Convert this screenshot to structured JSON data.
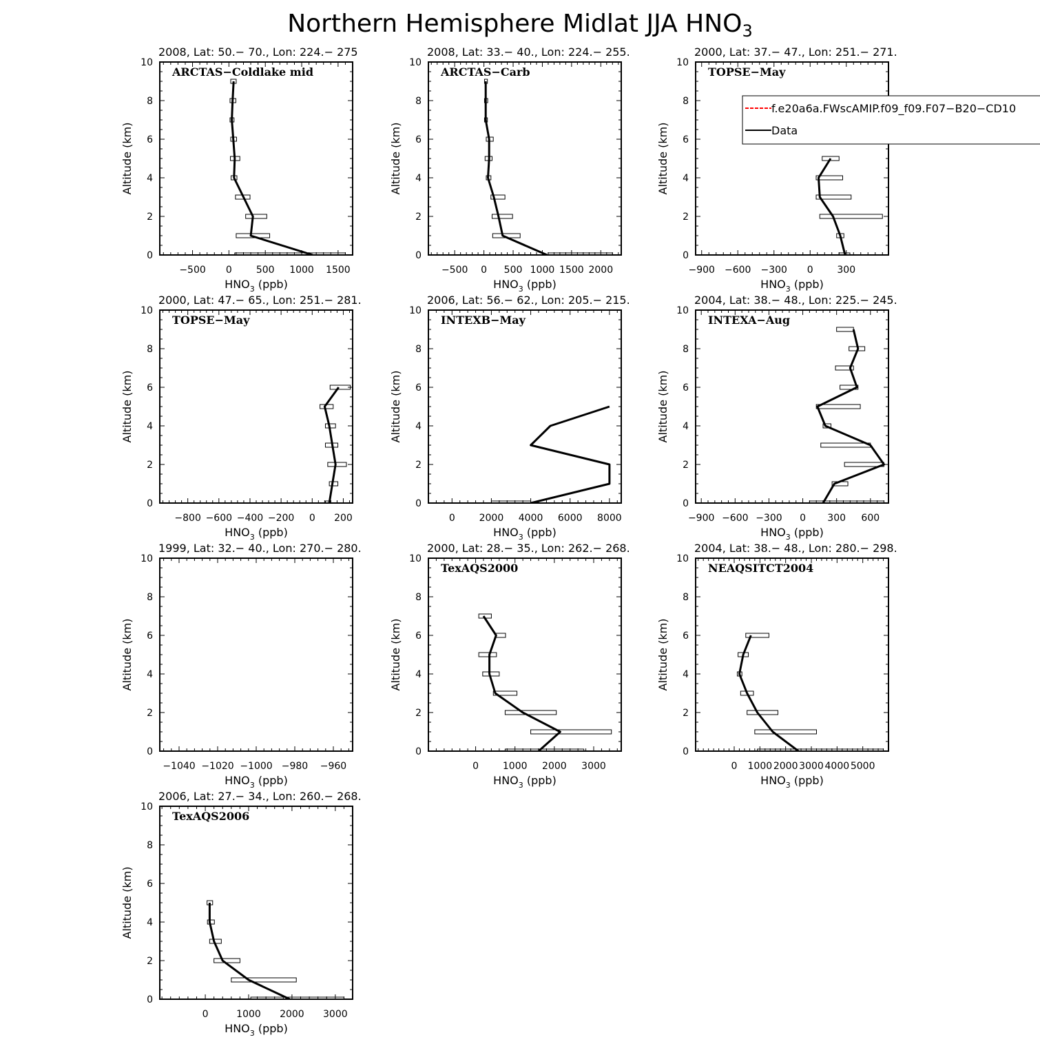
{
  "figure": {
    "title": "Northern Hemisphere Midlat JJA HNO",
    "title_sub": "3"
  },
  "legend": {
    "entries": [
      {
        "label": "f.e20a6a.FWscAMIP.f09_f09.F07−B20−CD10",
        "color": "#ff0000",
        "style": "dashed"
      },
      {
        "label": "Data",
        "color": "#000000",
        "style": "solid"
      }
    ],
    "panel": 2
  },
  "chart_data": [
    {
      "type": "line",
      "title": "2008, Lat:  50.− 70., Lon: 224.− 275",
      "campaign": "ARCTAS−Coldlake mid",
      "xlabel": "HNO",
      "xlabel_sub": "3",
      "xlabel_unit": " (ppb)",
      "ylabel": "Altitude (km)",
      "xlim": [
        -950,
        1700
      ],
      "ylim": [
        0,
        10
      ],
      "xticks": [
        -500,
        0,
        500,
        1000,
        1500
      ],
      "yticks": [
        0,
        2,
        4,
        6,
        8,
        10
      ],
      "series": [
        {
          "points": [
            [
              1150,
              0
            ],
            [
              300,
              1
            ],
            [
              330,
              2
            ],
            [
              200,
              3
            ],
            [
              70,
              4
            ],
            [
              80,
              5
            ],
            [
              60,
              6
            ],
            [
              40,
              7
            ],
            [
              50,
              8
            ],
            [
              65,
              9
            ]
          ],
          "boxes": [
            [
              80,
              1600,
              0
            ],
            [
              100,
              560,
              1
            ],
            [
              230,
              520,
              2
            ],
            [
              90,
              290,
              3
            ],
            [
              30,
              110,
              4
            ],
            [
              20,
              150,
              5
            ],
            [
              25,
              105,
              6
            ],
            [
              15,
              70,
              7
            ],
            [
              15,
              95,
              8
            ],
            [
              25,
              100,
              9
            ]
          ]
        }
      ]
    },
    {
      "type": "line",
      "title": "2008, Lat:  33.− 40., Lon: 224.− 255.",
      "campaign": "ARCTAS−Carb",
      "xlabel": "HNO",
      "xlabel_sub": "3",
      "xlabel_unit": " (ppb)",
      "ylabel": "Altitude (km)",
      "xlim": [
        -950,
        2350
      ],
      "ylim": [
        0,
        10
      ],
      "xticks": [
        -500,
        0,
        500,
        1000,
        1500,
        2000
      ],
      "yticks": [
        0,
        2,
        4,
        6,
        8,
        10
      ],
      "series": [
        {
          "points": [
            [
              1080,
              0
            ],
            [
              320,
              1
            ],
            [
              250,
              2
            ],
            [
              170,
              3
            ],
            [
              70,
              4
            ],
            [
              90,
              5
            ],
            [
              90,
              6
            ],
            [
              30,
              7
            ],
            [
              30,
              8
            ],
            [
              30,
              9
            ]
          ],
          "boxes": [
            [
              1100,
              2200,
              0
            ],
            [
              150,
              620,
              1
            ],
            [
              140,
              490,
              2
            ],
            [
              120,
              360,
              3
            ],
            [
              40,
              120,
              4
            ],
            [
              20,
              140,
              5
            ],
            [
              40,
              160,
              6
            ],
            [
              10,
              60,
              7
            ],
            [
              10,
              65,
              8
            ],
            [
              10,
              60,
              9
            ]
          ]
        }
      ]
    },
    {
      "type": "line",
      "title": "2000, Lat: 37.− 47., Lon: 251.− 271.",
      "campaign": "TOPSE−May",
      "xlabel": "HNO",
      "xlabel_sub": "3",
      "xlabel_unit": " (ppb)",
      "ylabel": "Altitude (km)",
      "xlim": [
        -950,
        650
      ],
      "ylim": [
        0,
        10
      ],
      "xticks": [
        -900,
        -600,
        -300,
        0,
        300
      ],
      "yticks": [
        0,
        2,
        4,
        6,
        8,
        10
      ],
      "series": [
        {
          "points": [
            [
              290,
              0
            ],
            [
              250,
              1
            ],
            [
              190,
              2
            ],
            [
              80,
              3
            ],
            [
              70,
              4
            ],
            [
              170,
              5
            ]
          ],
          "boxes": [
            [
              240,
              330,
              0
            ],
            [
              220,
              280,
              1
            ],
            [
              80,
              600,
              2
            ],
            [
              50,
              340,
              3
            ],
            [
              50,
              270,
              4
            ],
            [
              100,
              240,
              5
            ]
          ]
        }
      ]
    },
    {
      "type": "line",
      "title": "2000, Lat: 47.− 65., Lon: 251.− 281.",
      "campaign": "TOPSE−May",
      "xlabel": "HNO",
      "xlabel_sub": "3",
      "xlabel_unit": " (ppb)",
      "ylabel": "Altitude (km)",
      "xlim": [
        -980,
        260
      ],
      "ylim": [
        0,
        10
      ],
      "xticks": [
        -800,
        -600,
        -400,
        -200,
        0,
        200
      ],
      "yticks": [
        0,
        2,
        4,
        6,
        8,
        10
      ],
      "series": [
        {
          "points": [
            [
              110,
              0
            ],
            [
              130,
              1
            ],
            [
              150,
              2
            ],
            [
              130,
              3
            ],
            [
              110,
              4
            ],
            [
              80,
              5
            ],
            [
              170,
              6
            ]
          ],
          "boxes": [
            [
              85,
              115,
              0
            ],
            [
              110,
              165,
              1
            ],
            [
              100,
              220,
              2
            ],
            [
              85,
              165,
              3
            ],
            [
              85,
              150,
              4
            ],
            [
              50,
              135,
              5
            ],
            [
              115,
              245,
              6
            ]
          ]
        }
      ]
    },
    {
      "type": "line",
      "title": "2006, Lat: 56.− 62., Lon: 205.− 215.",
      "campaign": "INTEXB−May",
      "xlabel": "HNO",
      "xlabel_sub": "3",
      "xlabel_unit": " (ppb)",
      "ylabel": "Altitude (km)",
      "xlim": [
        -1200,
        8600
      ],
      "ylim": [
        0,
        10
      ],
      "xticks": [
        0,
        2000,
        4000,
        6000,
        8000
      ],
      "yticks": [
        0,
        2,
        4,
        6,
        8,
        10
      ],
      "series": [
        {
          "points": [
            [
              4000,
              0
            ],
            [
              8000,
              1
            ],
            [
              8000,
              2
            ],
            [
              4000,
              3
            ],
            [
              5000,
              4
            ],
            [
              8000,
              5
            ]
          ],
          "boxes": [
            [
              2000,
              4000,
              0
            ]
          ]
        }
      ]
    },
    {
      "type": "line",
      "title": "2004, Lat: 38.− 48., Lon: 225.− 245.",
      "campaign": "INTEXA−Aug",
      "xlabel": "HNO",
      "xlabel_sub": "3",
      "xlabel_unit": " (ppb)",
      "ylabel": "Altitude (km)",
      "xlim": [
        -950,
        760
      ],
      "ylim": [
        0,
        10
      ],
      "xticks": [
        -900,
        -600,
        -300,
        0,
        300,
        600
      ],
      "yticks": [
        0,
        2,
        4,
        6,
        8,
        10
      ],
      "series": [
        {
          "points": [
            [
              180,
              0
            ],
            [
              280,
              1
            ],
            [
              720,
              2
            ],
            [
              600,
              3
            ],
            [
              200,
              4
            ],
            [
              130,
              5
            ],
            [
              480,
              6
            ],
            [
              420,
              7
            ],
            [
              490,
              8
            ],
            [
              450,
              9
            ]
          ],
          "boxes": [
            [
              60,
              720,
              0
            ],
            [
              260,
              400,
              1
            ],
            [
              370,
              720,
              2
            ],
            [
              160,
              600,
              3
            ],
            [
              180,
              250,
              4
            ],
            [
              120,
              510,
              5
            ],
            [
              330,
              490,
              6
            ],
            [
              290,
              450,
              7
            ],
            [
              410,
              550,
              8
            ],
            [
              300,
              450,
              9
            ]
          ]
        }
      ]
    },
    {
      "type": "line",
      "title": "1999, Lat: 32.− 40., Lon: 270.− 280.",
      "campaign": "",
      "xlabel": "HNO",
      "xlabel_sub": "3",
      "xlabel_unit": " (ppb)",
      "ylabel": "Altitude (km)",
      "xlim": [
        -1050,
        -950
      ],
      "ylim": [
        0,
        10
      ],
      "xticks": [
        -1040,
        -1020,
        -1000,
        -980,
        -960
      ],
      "yticks": [
        0,
        2,
        4,
        6,
        8,
        10
      ],
      "series": [
        {
          "points": [],
          "boxes": []
        }
      ]
    },
    {
      "type": "line",
      "title": "2000, Lat: 28.− 35., Lon: 262.− 268.",
      "campaign": "TexAQS2000",
      "xlabel": "HNO",
      "xlabel_sub": "3",
      "xlabel_unit": " (ppb)",
      "ylabel": "Altitude (km)",
      "xlim": [
        -1200,
        3700
      ],
      "ylim": [
        0,
        10
      ],
      "xticks": [
        0,
        1000,
        2000,
        3000
      ],
      "yticks": [
        0,
        2,
        4,
        6,
        8,
        10
      ],
      "series": [
        {
          "points": [
            [
              1600,
              0
            ],
            [
              2150,
              1
            ],
            [
              1200,
              2
            ],
            [
              500,
              3
            ],
            [
              350,
              4
            ],
            [
              350,
              5
            ],
            [
              520,
              6
            ],
            [
              200,
              7
            ]
          ],
          "boxes": [
            [
              750,
              2750,
              0
            ],
            [
              1400,
              3450,
              1
            ],
            [
              750,
              2050,
              2
            ],
            [
              450,
              1050,
              3
            ],
            [
              180,
              600,
              4
            ],
            [
              80,
              530,
              5
            ],
            [
              500,
              760,
              6
            ],
            [
              80,
              400,
              7
            ]
          ]
        }
      ]
    },
    {
      "type": "line",
      "title": "2004, Lat: 38.− 48., Lon: 280.− 298.",
      "campaign": "NEAQSITCT2004",
      "xlabel": "HNO",
      "xlabel_sub": "3",
      "xlabel_unit": " (ppb)",
      "ylabel": "Altitude (km)",
      "xlim": [
        -1500,
        6000
      ],
      "ylim": [
        0,
        10
      ],
      "xticks": [
        0,
        1000,
        2000,
        3000,
        4000,
        5000
      ],
      "yticks": [
        0,
        2,
        4,
        6,
        8,
        10
      ],
      "series": [
        {
          "points": [
            [
              2500,
              0
            ],
            [
              1500,
              1
            ],
            [
              900,
              2
            ],
            [
              500,
              3
            ],
            [
              200,
              4
            ],
            [
              350,
              5
            ],
            [
              650,
              6
            ]
          ],
          "boxes": [
            [
              900,
              5800,
              0
            ],
            [
              800,
              3200,
              1
            ],
            [
              500,
              1700,
              2
            ],
            [
              250,
              750,
              3
            ],
            [
              120,
              300,
              4
            ],
            [
              150,
              550,
              5
            ],
            [
              450,
              1350,
              6
            ]
          ]
        }
      ]
    },
    {
      "type": "line",
      "title": "2006, Lat: 27.− 34., Lon: 260.− 268.",
      "campaign": "TexAQS2006",
      "xlabel": "HNO",
      "xlabel_sub": "3",
      "xlabel_unit": " (ppb)",
      "ylabel": "Altitude (km)",
      "xlim": [
        -1050,
        3400
      ],
      "ylim": [
        0,
        10
      ],
      "xticks": [
        0,
        1000,
        2000,
        3000
      ],
      "yticks": [
        0,
        2,
        4,
        6,
        8,
        10
      ],
      "series": [
        {
          "points": [
            [
              1950,
              0
            ],
            [
              1000,
              1
            ],
            [
              400,
              2
            ],
            [
              200,
              3
            ],
            [
              100,
              4
            ],
            [
              100,
              5
            ]
          ],
          "boxes": [
            [
              1050,
              3200,
              0
            ],
            [
              600,
              2100,
              1
            ],
            [
              200,
              800,
              2
            ],
            [
              100,
              370,
              3
            ],
            [
              50,
              210,
              4
            ],
            [
              40,
              170,
              5
            ]
          ]
        }
      ]
    }
  ]
}
